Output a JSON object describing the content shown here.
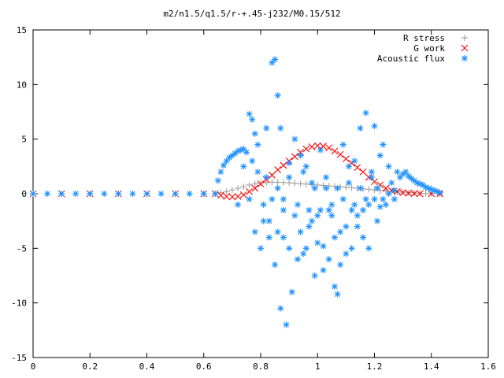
{
  "chart_data": {
    "type": "scatter",
    "title": "m2/n1.5/q1.5/r-+.45-j232/M0.15/512",
    "xlabel": "",
    "ylabel": "",
    "xlim": [
      0,
      1.6
    ],
    "ylim": [
      -15,
      15
    ],
    "x_ticks": [
      "0",
      "0.2",
      "0.4",
      "0.6",
      "0.8",
      "1",
      "1.2",
      "1.4",
      "1.6"
    ],
    "y_ticks": [
      "15",
      "10",
      "5",
      "0",
      "-5",
      "-10",
      "-15"
    ],
    "legend_position": "top-right",
    "grid": false,
    "series": [
      {
        "name": "R stress",
        "marker": "plus",
        "color": "#a0a0a0",
        "points": [
          [
            0.0,
            0
          ],
          [
            0.1,
            0
          ],
          [
            0.2,
            0
          ],
          [
            0.3,
            0
          ],
          [
            0.4,
            0
          ],
          [
            0.5,
            0
          ],
          [
            0.6,
            0
          ],
          [
            0.64,
            0
          ],
          [
            0.66,
            0.1
          ],
          [
            0.68,
            0.2
          ],
          [
            0.7,
            0.35
          ],
          [
            0.72,
            0.5
          ],
          [
            0.74,
            0.65
          ],
          [
            0.76,
            0.8
          ],
          [
            0.78,
            0.9
          ],
          [
            0.8,
            0.97
          ],
          [
            0.82,
            1.02
          ],
          [
            0.84,
            1.05
          ],
          [
            0.86,
            1.05
          ],
          [
            0.88,
            1.03
          ],
          [
            0.9,
            1.0
          ],
          [
            0.92,
            0.96
          ],
          [
            0.94,
            0.92
          ],
          [
            0.96,
            0.88
          ],
          [
            0.98,
            0.84
          ],
          [
            1.0,
            0.8
          ],
          [
            1.02,
            0.76
          ],
          [
            1.04,
            0.72
          ],
          [
            1.06,
            0.68
          ],
          [
            1.08,
            0.64
          ],
          [
            1.1,
            0.6
          ],
          [
            1.12,
            0.55
          ],
          [
            1.14,
            0.5
          ],
          [
            1.16,
            0.45
          ],
          [
            1.18,
            0.4
          ],
          [
            1.2,
            0.35
          ],
          [
            1.22,
            0.3
          ],
          [
            1.24,
            0.26
          ],
          [
            1.26,
            0.22
          ],
          [
            1.28,
            0.18
          ],
          [
            1.3,
            0.14
          ],
          [
            1.32,
            0.1
          ],
          [
            1.34,
            0.07
          ],
          [
            1.36,
            0.05
          ],
          [
            1.38,
            0.03
          ],
          [
            1.4,
            0.02
          ],
          [
            1.43,
            0.0
          ]
        ]
      },
      {
        "name": "G work",
        "marker": "cross",
        "color": "#ff0000",
        "points": [
          [
            0.0,
            0
          ],
          [
            0.1,
            0
          ],
          [
            0.2,
            0
          ],
          [
            0.3,
            0
          ],
          [
            0.4,
            0
          ],
          [
            0.5,
            0
          ],
          [
            0.6,
            0
          ],
          [
            0.64,
            0
          ],
          [
            0.66,
            -0.15
          ],
          [
            0.68,
            -0.25
          ],
          [
            0.7,
            -0.3
          ],
          [
            0.72,
            -0.25
          ],
          [
            0.74,
            -0.1
          ],
          [
            0.76,
            0.2
          ],
          [
            0.78,
            0.5
          ],
          [
            0.8,
            0.9
          ],
          [
            0.82,
            1.3
          ],
          [
            0.84,
            1.7
          ],
          [
            0.86,
            2.2
          ],
          [
            0.88,
            2.6
          ],
          [
            0.9,
            3.0
          ],
          [
            0.92,
            3.4
          ],
          [
            0.94,
            3.8
          ],
          [
            0.96,
            4.1
          ],
          [
            0.98,
            4.3
          ],
          [
            1.0,
            4.4
          ],
          [
            1.02,
            4.35
          ],
          [
            1.04,
            4.2
          ],
          [
            1.06,
            3.9
          ],
          [
            1.08,
            3.6
          ],
          [
            1.1,
            3.2
          ],
          [
            1.12,
            2.8
          ],
          [
            1.14,
            2.4
          ],
          [
            1.16,
            2.0
          ],
          [
            1.18,
            1.5
          ],
          [
            1.2,
            1.1
          ],
          [
            1.22,
            0.8
          ],
          [
            1.24,
            0.5
          ],
          [
            1.26,
            0.3
          ],
          [
            1.28,
            0.2
          ],
          [
            1.3,
            0.1
          ],
          [
            1.32,
            0.05
          ],
          [
            1.34,
            0.02
          ],
          [
            1.36,
            0.0
          ],
          [
            1.4,
            0.0
          ],
          [
            1.43,
            0.0
          ]
        ]
      },
      {
        "name": "Acoustic flux",
        "marker": "star",
        "color": "#1e90ff",
        "points": [
          [
            0.0,
            0
          ],
          [
            0.05,
            0
          ],
          [
            0.1,
            0
          ],
          [
            0.15,
            0
          ],
          [
            0.2,
            0
          ],
          [
            0.25,
            0
          ],
          [
            0.3,
            0
          ],
          [
            0.35,
            0
          ],
          [
            0.4,
            0
          ],
          [
            0.45,
            0
          ],
          [
            0.5,
            0
          ],
          [
            0.55,
            0
          ],
          [
            0.6,
            0
          ],
          [
            0.64,
            0
          ],
          [
            0.65,
            1.2
          ],
          [
            0.66,
            2.0
          ],
          [
            0.67,
            2.6
          ],
          [
            0.68,
            3.0
          ],
          [
            0.69,
            3.3
          ],
          [
            0.7,
            3.5
          ],
          [
            0.71,
            3.7
          ],
          [
            0.72,
            3.9
          ],
          [
            0.73,
            4.0
          ],
          [
            0.74,
            4.1
          ],
          [
            0.75,
            3.8
          ],
          [
            0.76,
            7.3
          ],
          [
            0.77,
            6.8
          ],
          [
            0.78,
            5.5
          ],
          [
            0.79,
            4.5
          ],
          [
            0.8,
            -5.0
          ],
          [
            0.81,
            -2.5
          ],
          [
            0.82,
            6.0
          ],
          [
            0.83,
            -4.0
          ],
          [
            0.84,
            12.0
          ],
          [
            0.85,
            12.3
          ],
          [
            0.86,
            9.0
          ],
          [
            0.87,
            6.0
          ],
          [
            0.88,
            -4.0
          ],
          [
            0.89,
            -12.0
          ],
          [
            0.9,
            2.8
          ],
          [
            0.91,
            -9.0
          ],
          [
            0.92,
            5.0
          ],
          [
            0.93,
            -6.0
          ],
          [
            0.94,
            3.5
          ],
          [
            0.95,
            -5.5
          ],
          [
            0.96,
            2.5
          ],
          [
            0.97,
            -3.0
          ],
          [
            0.98,
            1.0
          ],
          [
            0.99,
            -7.5
          ],
          [
            1.0,
            -4.5
          ],
          [
            1.01,
            4.0
          ],
          [
            1.02,
            -7.0
          ],
          [
            1.03,
            0.5
          ],
          [
            1.04,
            -6.0
          ],
          [
            1.05,
            -2.0
          ],
          [
            1.06,
            -4.0
          ],
          [
            1.07,
            -9.2
          ],
          [
            1.08,
            -6.5
          ],
          [
            1.09,
            4.5
          ],
          [
            1.1,
            -3.0
          ],
          [
            1.11,
            2.5
          ],
          [
            1.12,
            -5.0
          ],
          [
            1.13,
            3.0
          ],
          [
            1.14,
            -2.0
          ],
          [
            1.15,
            6.0
          ],
          [
            1.16,
            -4.0
          ],
          [
            1.17,
            7.4
          ],
          [
            1.18,
            -1.0
          ],
          [
            1.19,
            2.0
          ],
          [
            1.2,
            6.2
          ],
          [
            1.21,
            -2.5
          ],
          [
            1.22,
            3.5
          ],
          [
            1.23,
            4.5
          ],
          [
            1.24,
            -1.0
          ],
          [
            1.25,
            2.5
          ],
          [
            1.26,
            1.0
          ],
          [
            1.27,
            -0.5
          ],
          [
            1.28,
            2.0
          ],
          [
            1.29,
            1.5
          ],
          [
            1.3,
            1.8
          ],
          [
            1.31,
            2.0
          ],
          [
            1.32,
            1.6
          ],
          [
            1.33,
            1.4
          ],
          [
            1.34,
            1.2
          ],
          [
            1.35,
            1.0
          ],
          [
            1.36,
            0.9
          ],
          [
            1.37,
            0.8
          ],
          [
            1.38,
            0.6
          ],
          [
            1.39,
            0.5
          ],
          [
            1.4,
            0.4
          ],
          [
            1.41,
            0.3
          ],
          [
            1.42,
            0.2
          ],
          [
            1.43,
            0.1
          ],
          [
            0.72,
            -1.0
          ],
          [
            0.76,
            -0.5
          ],
          [
            0.78,
            -3.5
          ],
          [
            0.81,
            -1.0
          ],
          [
            0.83,
            -2.5
          ],
          [
            0.85,
            -6.5
          ],
          [
            0.86,
            -3.5
          ],
          [
            0.87,
            -10.5
          ],
          [
            0.88,
            -1.5
          ],
          [
            0.9,
            -5.0
          ],
          [
            0.92,
            -2.0
          ],
          [
            0.94,
            -3.5
          ],
          [
            0.96,
            -5.0
          ],
          [
            0.98,
            -2.5
          ],
          [
            1.0,
            -2.0
          ],
          [
            1.02,
            -4.8
          ],
          [
            1.04,
            -1.5
          ],
          [
            1.06,
            -8.5
          ],
          [
            1.08,
            -3.5
          ],
          [
            1.1,
            -5.5
          ],
          [
            1.12,
            -1.5
          ],
          [
            1.14,
            -3.0
          ],
          [
            1.16,
            -1.5
          ],
          [
            1.18,
            -5.0
          ],
          [
            1.2,
            -0.5
          ],
          [
            1.22,
            -1.2
          ],
          [
            0.74,
            2.5
          ],
          [
            0.77,
            3.0
          ],
          [
            0.79,
            2.0
          ],
          [
            0.82,
            1.5
          ],
          [
            0.84,
            -0.5
          ],
          [
            0.86,
            0.5
          ],
          [
            0.88,
            -0.5
          ],
          [
            0.9,
            1.5
          ],
          [
            0.93,
            -1.0
          ],
          [
            0.95,
            2.0
          ],
          [
            0.97,
            -1.5
          ],
          [
            0.99,
            0.5
          ],
          [
            1.01,
            -1.5
          ],
          [
            1.03,
            1.5
          ],
          [
            1.05,
            -1.0
          ],
          [
            1.07,
            0.5
          ],
          [
            1.09,
            -0.5
          ],
          [
            1.11,
            1.0
          ],
          [
            1.13,
            -1.0
          ],
          [
            1.15,
            0.5
          ],
          [
            1.17,
            -0.5
          ],
          [
            1.19,
            1.5
          ],
          [
            1.21,
            0.5
          ],
          [
            1.23,
            -0.5
          ],
          [
            1.25,
            0.0
          ],
          [
            1.27,
            0.3
          ]
        ]
      }
    ]
  }
}
